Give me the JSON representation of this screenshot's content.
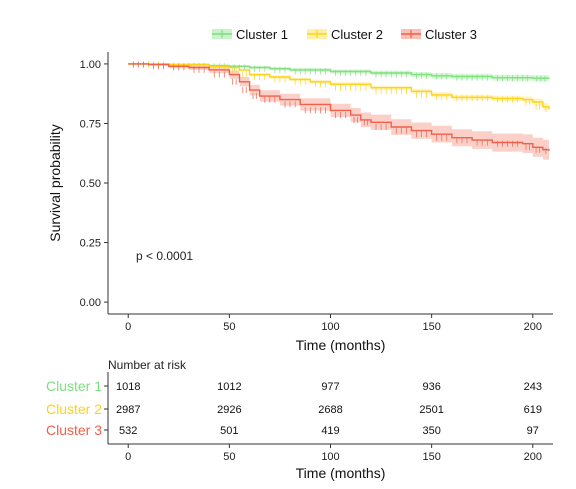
{
  "chart_data": {
    "type": "line",
    "subtype": "kaplan-meier",
    "xlabel": "Time (months)",
    "ylabel": "Survival probability",
    "xlim": [
      -10,
      210
    ],
    "ylim": [
      -0.05,
      1.05
    ],
    "xticks": [
      "0",
      "50",
      "100",
      "150",
      "200"
    ],
    "yticks": [
      "0.00",
      "0.25",
      "0.50",
      "0.75",
      "1.00"
    ],
    "annotation": "p < 0.0001",
    "legend_position": "top",
    "series": [
      {
        "name": "Cluster 1",
        "color": "#7ee07e",
        "ci_color": "#c8f3c8",
        "points": [
          [
            0,
            1.0
          ],
          [
            20,
            0.998
          ],
          [
            40,
            0.993
          ],
          [
            50,
            0.99
          ],
          [
            60,
            0.985
          ],
          [
            70,
            0.98
          ],
          [
            80,
            0.975
          ],
          [
            100,
            0.968
          ],
          [
            120,
            0.962
          ],
          [
            140,
            0.955
          ],
          [
            150,
            0.95
          ],
          [
            160,
            0.947
          ],
          [
            180,
            0.942
          ],
          [
            200,
            0.94
          ],
          [
            208,
            0.938
          ]
        ],
        "ci_width": [
          0.0,
          0.002,
          0.004,
          0.005,
          0.006,
          0.007,
          0.008,
          0.009,
          0.01,
          0.011,
          0.012,
          0.012,
          0.013,
          0.013,
          0.014
        ]
      },
      {
        "name": "Cluster 2",
        "color": "#ffd21a",
        "ci_color": "#fff0a8",
        "points": [
          [
            0,
            1.0
          ],
          [
            20,
            0.997
          ],
          [
            40,
            0.99
          ],
          [
            50,
            0.985
          ],
          [
            55,
            0.975
          ],
          [
            60,
            0.955
          ],
          [
            70,
            0.945
          ],
          [
            80,
            0.935
          ],
          [
            90,
            0.925
          ],
          [
            100,
            0.915
          ],
          [
            120,
            0.9
          ],
          [
            140,
            0.885
          ],
          [
            150,
            0.87
          ],
          [
            160,
            0.86
          ],
          [
            180,
            0.855
          ],
          [
            195,
            0.85
          ],
          [
            200,
            0.84
          ],
          [
            205,
            0.82
          ],
          [
            208,
            0.81
          ]
        ],
        "ci_width": [
          0.0,
          0.002,
          0.003,
          0.004,
          0.005,
          0.006,
          0.007,
          0.007,
          0.008,
          0.008,
          0.009,
          0.01,
          0.01,
          0.011,
          0.012,
          0.013,
          0.014,
          0.015,
          0.016
        ]
      },
      {
        "name": "Cluster 3",
        "color": "#f0604a",
        "ci_color": "#f9c0b6",
        "points": [
          [
            0,
            1.0
          ],
          [
            10,
            0.997
          ],
          [
            20,
            0.99
          ],
          [
            30,
            0.985
          ],
          [
            40,
            0.975
          ],
          [
            50,
            0.955
          ],
          [
            55,
            0.925
          ],
          [
            60,
            0.89
          ],
          [
            65,
            0.865
          ],
          [
            75,
            0.85
          ],
          [
            85,
            0.83
          ],
          [
            100,
            0.805
          ],
          [
            110,
            0.785
          ],
          [
            115,
            0.765
          ],
          [
            120,
            0.755
          ],
          [
            130,
            0.735
          ],
          [
            140,
            0.72
          ],
          [
            150,
            0.705
          ],
          [
            160,
            0.69
          ],
          [
            170,
            0.68
          ],
          [
            180,
            0.67
          ],
          [
            195,
            0.665
          ],
          [
            200,
            0.65
          ],
          [
            205,
            0.64
          ],
          [
            208,
            0.635
          ]
        ],
        "ci_width": [
          0.0,
          0.004,
          0.008,
          0.01,
          0.013,
          0.017,
          0.02,
          0.022,
          0.024,
          0.025,
          0.026,
          0.028,
          0.03,
          0.031,
          0.032,
          0.033,
          0.034,
          0.035,
          0.036,
          0.037,
          0.038,
          0.039,
          0.04,
          0.042,
          0.045
        ]
      }
    ]
  },
  "risk_table": {
    "title": "Number at risk",
    "xlabel": "Time (months)",
    "xticks": [
      "0",
      "50",
      "100",
      "150",
      "200"
    ],
    "rows": [
      {
        "name": "Cluster 1",
        "color": "#7ee07e",
        "values": [
          "1018",
          "1012",
          "977",
          "936",
          "243"
        ]
      },
      {
        "name": "Cluster 2",
        "color": "#ffd21a",
        "values": [
          "2987",
          "2926",
          "2688",
          "2501",
          "619"
        ]
      },
      {
        "name": "Cluster 3",
        "color": "#f0604a",
        "values": [
          "532",
          "501",
          "419",
          "350",
          "97"
        ]
      }
    ]
  }
}
